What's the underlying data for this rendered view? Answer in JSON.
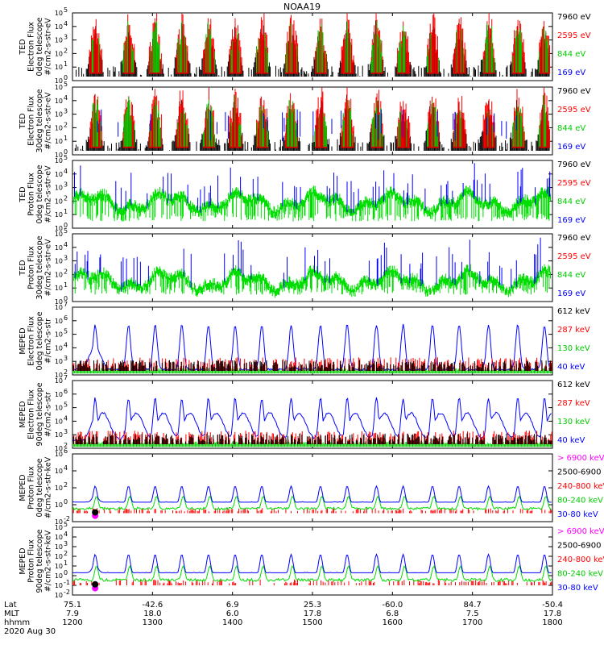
{
  "chart_data": {
    "type": "line",
    "title": "NOAA19",
    "date_label": "2020 Aug 30",
    "x_axis": {
      "row_labels": [
        "Lat",
        "MLT",
        "hhmm"
      ],
      "ticks": [
        {
          "lat": "75.1",
          "mlt": "7.9",
          "hhmm": "1200",
          "t": 0
        },
        {
          "lat": "-42.6",
          "mlt": "18.0",
          "hhmm": "1300",
          "t": 60
        },
        {
          "lat": "6.9",
          "mlt": "6.0",
          "hhmm": "1400",
          "t": 120
        },
        {
          "lat": "25.3",
          "mlt": "17.8",
          "hhmm": "1500",
          "t": 180
        },
        {
          "lat": "-60.0",
          "mlt": "6.8",
          "hhmm": "1600",
          "t": 240
        },
        {
          "lat": "84.7",
          "mlt": "7.5",
          "hhmm": "1700",
          "t": 300
        },
        {
          "lat": "-50.4",
          "mlt": "17.8",
          "hhmm": "1800",
          "t": 360
        }
      ],
      "xlim": [
        0,
        360
      ]
    },
    "panels": [
      {
        "ylabel": [
          "TED",
          "Electron Flux",
          "0deg telescope",
          "#/cm2-s-str-eV"
        ],
        "ylim_exp": [
          0,
          5
        ],
        "style": "ted",
        "legend": [
          {
            "text": "7960 eV",
            "color": "#000000"
          },
          {
            "text": "2595 eV",
            "color": "#ff0000"
          },
          {
            "text": "844 eV",
            "color": "#00cc00"
          },
          {
            "text": "169 eV",
            "color": "#0000ff"
          }
        ]
      },
      {
        "ylabel": [
          "TED",
          "Electron Flux",
          "30deg telescope",
          "#/cm2-s-str-eV"
        ],
        "ylim_exp": [
          0,
          5
        ],
        "style": "ted",
        "legend": [
          {
            "text": "7960 eV",
            "color": "#000000"
          },
          {
            "text": "2595 eV",
            "color": "#ff0000"
          },
          {
            "text": "844 eV",
            "color": "#00cc00"
          },
          {
            "text": "169 eV",
            "color": "#0000ff"
          }
        ]
      },
      {
        "ylabel": [
          "TED",
          "Proton Flux",
          "0deg telescope",
          "#/cm2-s-str-eV"
        ],
        "ylim_exp": [
          0,
          5
        ],
        "style": "tedp",
        "legend": [
          {
            "text": "7960 eV",
            "color": "#000000"
          },
          {
            "text": "2595 eV",
            "color": "#ff0000"
          },
          {
            "text": "844 eV",
            "color": "#00cc00"
          },
          {
            "text": "169 eV",
            "color": "#0000ff"
          }
        ]
      },
      {
        "ylabel": [
          "TED",
          "Proton Flux",
          "30deg telescope",
          "#/cm2-s-str-eV"
        ],
        "ylim_exp": [
          0,
          5
        ],
        "style": "tedp",
        "legend": [
          {
            "text": "7960 eV",
            "color": "#000000"
          },
          {
            "text": "2595 eV",
            "color": "#ff0000"
          },
          {
            "text": "844 eV",
            "color": "#00cc00"
          },
          {
            "text": "169 eV",
            "color": "#0000ff"
          }
        ]
      },
      {
        "ylabel": [
          "MEPED",
          "Electron Flux",
          "0deg telescope",
          "#/cm2-s-str"
        ],
        "ylim_exp": [
          2,
          7
        ],
        "style": "mepe",
        "legend": [
          {
            "text": "612 keV",
            "color": "#000000"
          },
          {
            "text": "287 keV",
            "color": "#ff0000"
          },
          {
            "text": "130 keV",
            "color": "#00cc00"
          },
          {
            "text": "40 keV",
            "color": "#0000ff"
          }
        ]
      },
      {
        "ylabel": [
          "MEPED",
          "Electron Flux",
          "90deg telescope",
          "#/cm2-s-str"
        ],
        "ylim_exp": [
          2,
          7
        ],
        "style": "mepe",
        "legend": [
          {
            "text": "612 keV",
            "color": "#000000"
          },
          {
            "text": "287 keV",
            "color": "#ff0000"
          },
          {
            "text": "130 keV",
            "color": "#00cc00"
          },
          {
            "text": "40 keV",
            "color": "#0000ff"
          }
        ]
      },
      {
        "ylabel": [
          "MEPED",
          "Proton Flux",
          "0deg telescope",
          "#/cm2-s-str-keV"
        ],
        "ylim_exp": [
          -2,
          6
        ],
        "tick_step": 2,
        "style": "mepp",
        "legend": [
          {
            "text": "> 6900 keV",
            "color": "#ff00ff"
          },
          {
            "text": "2500-6900",
            "color": "#000000"
          },
          {
            "text": "240-800 keV",
            "color": "#ff0000"
          },
          {
            "text": "80-240 keV",
            "color": "#00cc00"
          },
          {
            "text": "30-80 keV",
            "color": "#0000ff"
          }
        ]
      },
      {
        "ylabel": [
          "MEPED",
          "Proton Flux",
          "90deg telescope",
          "#/cm2-s-str-keV"
        ],
        "ylim_exp": [
          -2,
          5
        ],
        "tick_step": 1,
        "style": "mepp",
        "legend": [
          {
            "text": "> 6900 keV",
            "color": "#ff00ff"
          },
          {
            "text": "2500-6900",
            "color": "#000000"
          },
          {
            "text": "240-800 keV",
            "color": "#ff0000"
          },
          {
            "text": "80-240 keV",
            "color": "#00cc00"
          },
          {
            "text": "30-80 keV",
            "color": "#0000ff"
          }
        ]
      }
    ]
  }
}
